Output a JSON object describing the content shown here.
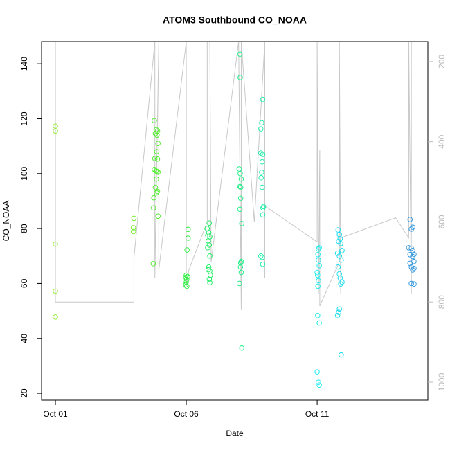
{
  "chart_data": {
    "type": "scatter",
    "title": "ATOM3 Southbound CO_NOAA",
    "xlabel": "Date",
    "ylabel": "CO_NOAA",
    "xlim": [
      0.47,
      15.23
    ],
    "xticks": [
      {
        "value": 1,
        "label": "Oct 01"
      },
      {
        "value": 6,
        "label": "Oct 06"
      },
      {
        "value": 11,
        "label": "Oct 11"
      }
    ],
    "ylim": [
      17.5,
      148.1
    ],
    "yticks": [
      20,
      40,
      60,
      80,
      100,
      120,
      140
    ],
    "y2lim": [
      1045,
      150
    ],
    "y2ticks": [
      200,
      400,
      600,
      800,
      1000
    ],
    "y2color": "#bbbbbb",
    "series": [
      {
        "color": "#99ee44",
        "x": [
          1.0,
          1.0,
          1.0,
          1.0,
          1.0
        ],
        "values": [
          117.3,
          115.5,
          74.3,
          57.2,
          47.8
        ]
      },
      {
        "color": "#77ee33",
        "x": [
          4.0,
          3.98,
          3.98
        ],
        "values": [
          83.7,
          80.3,
          78.9
        ]
      },
      {
        "color": "#55ee33",
        "x": [
          4.78,
          4.85,
          4.9,
          4.82,
          4.88,
          4.92,
          4.87,
          4.8,
          4.9,
          4.78,
          4.84,
          4.92,
          4.88,
          4.86,
          4.82,
          4.9,
          4.86,
          4.76,
          4.75,
          4.92,
          4.74
        ],
        "values": [
          119.3,
          116,
          115.5,
          114.6,
          114,
          111,
          108,
          105.5,
          105.3,
          101.5,
          101,
          100.5,
          100.8,
          98,
          95,
          93.5,
          93,
          91.2,
          87.5,
          84.5,
          67.2
        ]
      },
      {
        "color": "#33ee44",
        "x": [
          6.07,
          6.07,
          6.03,
          6.0,
          6.05,
          5.98,
          6.02,
          6.0,
          5.98,
          6.02
        ],
        "values": [
          79.7,
          76.5,
          72.2,
          63,
          62.5,
          62.2,
          61.5,
          60.5,
          59.5,
          59
        ]
      },
      {
        "color": "#22ee66",
        "x": [
          6.88,
          6.8,
          6.86,
          6.82,
          6.9,
          6.84,
          6.88,
          6.82,
          6.9,
          6.86,
          6.84,
          6.9,
          6.92,
          6.88,
          6.9
        ],
        "values": [
          82,
          80,
          78.5,
          77.6,
          77,
          75.5,
          74,
          73,
          70,
          66,
          65,
          64.5,
          63,
          61.5,
          60.3
        ]
      },
      {
        "color": "#22ee88",
        "x": [
          8.05,
          8.06,
          8.02,
          8.06,
          8.1,
          8.05,
          8.08,
          8.08,
          8.05,
          8.12,
          8.1,
          8.08,
          8.07,
          8.1,
          8.03,
          8.12
        ],
        "values": [
          143.5,
          135,
          101.7,
          100,
          98,
          95.3,
          95,
          91,
          87,
          81.8,
          68,
          67.5,
          66,
          64,
          60,
          36.5
        ]
      },
      {
        "color": "#22eeaa",
        "x": [
          8.92,
          8.88,
          8.85,
          8.85,
          8.92,
          8.9,
          8.88,
          8.86,
          8.9,
          8.95,
          8.93,
          8.92,
          8.85,
          8.9,
          8.92
        ],
        "values": [
          127,
          118.5,
          116.3,
          107.5,
          107,
          104.3,
          100.5,
          98.5,
          95,
          88,
          87.5,
          85,
          70,
          69.5,
          67
        ]
      },
      {
        "color": "#22eeee",
        "x": [
          11.08,
          11.05,
          11.03,
          11.05,
          11.08,
          11.0,
          11.02,
          11.05,
          11.03,
          11.02,
          11.08,
          11.0,
          11.05,
          11.08
        ],
        "values": [
          73,
          72.5,
          70.5,
          68.5,
          66.5,
          64,
          63,
          61,
          59,
          48.3,
          45.6,
          27.8,
          24,
          23
        ]
      },
      {
        "color": "#22ddee",
        "x": [
          11.8,
          11.85,
          11.88,
          11.82,
          11.9,
          11.95,
          11.78,
          11.85,
          11.92,
          11.8,
          11.85,
          11.88,
          11.95,
          11.9,
          11.85,
          11.82,
          11.78,
          11.92
        ],
        "values": [
          79.5,
          77.8,
          76.3,
          75.3,
          74.5,
          72,
          71,
          70,
          68.5,
          66,
          63.5,
          62,
          60.5,
          59.8,
          50.7,
          49.5,
          48.3,
          34
        ]
      },
      {
        "color": "#3399dd",
        "x": [
          14.55,
          14.65,
          14.6,
          14.5,
          14.6,
          14.65,
          14.7,
          14.55,
          14.65,
          14.7,
          14.55,
          14.6,
          14.7,
          14.65,
          14.6,
          14.7
        ],
        "values": [
          83.3,
          80.5,
          79.8,
          73,
          72.8,
          72,
          70.6,
          70.5,
          69.8,
          68,
          67.3,
          66,
          65.5,
          64.9,
          60,
          59.8
        ]
      },
      {
        "color": "#c8c8c8",
        "axis": "y2",
        "style": "line",
        "x": [
          1.0,
          1.0,
          4.0,
          4.0,
          4.8,
          4.8,
          4.95,
          4.95,
          6.0,
          6.0,
          6.1,
          6.8,
          6.8,
          6.9,
          6.95,
          8.0,
          8.1,
          8.1,
          8.6,
          9.0,
          9.0,
          9.0,
          11.0,
          11.0,
          11.05,
          11.1,
          11.1,
          11.85,
          11.85,
          11.9,
          11.9,
          14.0,
          14.5,
          14.5,
          14.6,
          14.6
        ],
        "values": [
          150,
          800,
          800,
          690,
          150,
          740,
          150,
          720,
          150,
          760,
          720,
          600,
          150,
          150,
          700,
          150,
          820,
          150,
          600,
          150,
          740,
          560,
          650,
          150,
          780,
          420,
          810,
          700,
          150,
          780,
          640,
          590,
          640,
          150,
          780,
          150
        ]
      }
    ]
  }
}
